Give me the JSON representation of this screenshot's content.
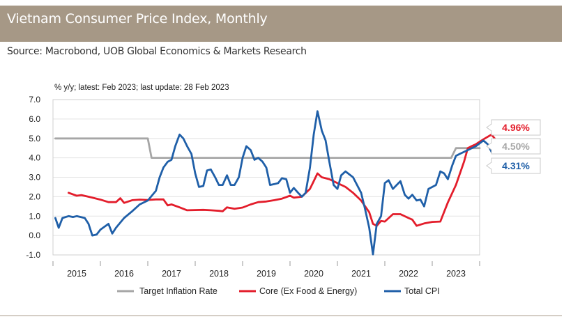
{
  "header": {
    "title": "Vietnam Consumer Price Index, Monthly",
    "source": "Source: Macrobond, UOB Global Economics & Markets Research"
  },
  "chart_data": {
    "type": "line",
    "subtitle": "% y/y; latest: Feb 2023; last update: 28 Feb 2023",
    "xlabel": "",
    "ylabel": "",
    "ylim": [
      -1.0,
      7.0
    ],
    "xlim": [
      2014.5,
      2023.5
    ],
    "y_ticks": [
      "7.0",
      "6.0",
      "5.0",
      "4.0",
      "3.0",
      "2.0",
      "1.0",
      "0.0",
      "-1.0"
    ],
    "x_ticks": [
      "2015",
      "2016",
      "2017",
      "2018",
      "2019",
      "2020",
      "2021",
      "2022",
      "2023"
    ],
    "grid": "horizontal",
    "legend_position": "bottom",
    "series": [
      {
        "name": "Target Inflation Rate",
        "color": "#a6a6a6",
        "points": [
          [
            2014.55,
            5.0
          ],
          [
            2016.5,
            5.0
          ],
          [
            2016.58,
            4.0
          ],
          [
            2022.9,
            4.0
          ],
          [
            2023.0,
            4.5
          ],
          [
            2023.5,
            4.5
          ]
        ]
      },
      {
        "name": "Core (Ex Food & Energy)",
        "color": "#e31d2b",
        "points": [
          [
            2014.83,
            2.2
          ],
          [
            2015.0,
            2.05
          ],
          [
            2015.1,
            2.08
          ],
          [
            2015.3,
            1.97
          ],
          [
            2015.5,
            1.85
          ],
          [
            2015.67,
            1.72
          ],
          [
            2015.83,
            1.72
          ],
          [
            2015.92,
            1.92
          ],
          [
            2016.0,
            1.68
          ],
          [
            2016.17,
            1.82
          ],
          [
            2016.33,
            1.85
          ],
          [
            2016.5,
            1.83
          ],
          [
            2016.67,
            1.86
          ],
          [
            2016.83,
            1.86
          ],
          [
            2016.92,
            1.55
          ],
          [
            2017.0,
            1.6
          ],
          [
            2017.17,
            1.45
          ],
          [
            2017.33,
            1.3
          ],
          [
            2017.67,
            1.32
          ],
          [
            2017.83,
            1.3
          ],
          [
            2018.0,
            1.27
          ],
          [
            2018.08,
            1.25
          ],
          [
            2018.17,
            1.45
          ],
          [
            2018.33,
            1.38
          ],
          [
            2018.5,
            1.44
          ],
          [
            2018.67,
            1.6
          ],
          [
            2018.83,
            1.72
          ],
          [
            2019.0,
            1.75
          ],
          [
            2019.17,
            1.82
          ],
          [
            2019.33,
            1.9
          ],
          [
            2019.5,
            2.05
          ],
          [
            2019.58,
            1.95
          ],
          [
            2019.75,
            2.0
          ],
          [
            2019.92,
            2.4
          ],
          [
            2020.0,
            2.8
          ],
          [
            2020.08,
            3.2
          ],
          [
            2020.17,
            3.0
          ],
          [
            2020.33,
            2.9
          ],
          [
            2020.5,
            2.7
          ],
          [
            2020.67,
            2.5
          ],
          [
            2020.83,
            2.2
          ],
          [
            2021.0,
            1.8
          ],
          [
            2021.17,
            1.2
          ],
          [
            2021.25,
            0.6
          ],
          [
            2021.33,
            0.5
          ],
          [
            2021.42,
            0.75
          ],
          [
            2021.5,
            0.72
          ],
          [
            2021.67,
            1.1
          ],
          [
            2021.83,
            1.1
          ],
          [
            2022.0,
            0.9
          ],
          [
            2022.08,
            0.82
          ],
          [
            2022.17,
            0.5
          ],
          [
            2022.33,
            0.62
          ],
          [
            2022.5,
            0.7
          ],
          [
            2022.67,
            0.72
          ],
          [
            2022.83,
            1.7
          ],
          [
            2023.0,
            2.6
          ],
          [
            2023.17,
            3.8
          ],
          [
            2023.25,
            4.5
          ],
          [
            2023.33,
            4.6
          ],
          [
            2023.42,
            4.7
          ],
          [
            2023.58,
            4.95
          ],
          [
            2023.75,
            5.2
          ],
          [
            2023.83,
            4.96
          ]
        ]
      },
      {
        "name": "Total CPI",
        "color": "#1f5fa8",
        "points": [
          [
            2014.55,
            0.9
          ],
          [
            2014.62,
            0.4
          ],
          [
            2014.7,
            0.9
          ],
          [
            2014.83,
            1.0
          ],
          [
            2014.92,
            0.95
          ],
          [
            2015.0,
            1.0
          ],
          [
            2015.17,
            0.9
          ],
          [
            2015.25,
            0.6
          ],
          [
            2015.33,
            0.0
          ],
          [
            2015.42,
            0.05
          ],
          [
            2015.5,
            0.3
          ],
          [
            2015.67,
            0.6
          ],
          [
            2015.75,
            0.1
          ],
          [
            2015.83,
            0.4
          ],
          [
            2016.0,
            0.9
          ],
          [
            2016.17,
            1.25
          ],
          [
            2016.33,
            1.6
          ],
          [
            2016.5,
            1.8
          ],
          [
            2016.67,
            2.3
          ],
          [
            2016.75,
            3.0
          ],
          [
            2016.83,
            3.5
          ],
          [
            2016.92,
            3.8
          ],
          [
            2017.0,
            3.9
          ],
          [
            2017.08,
            4.6
          ],
          [
            2017.17,
            5.2
          ],
          [
            2017.25,
            5.0
          ],
          [
            2017.33,
            4.6
          ],
          [
            2017.42,
            4.2
          ],
          [
            2017.5,
            3.2
          ],
          [
            2017.58,
            2.5
          ],
          [
            2017.67,
            2.55
          ],
          [
            2017.75,
            3.35
          ],
          [
            2017.83,
            3.4
          ],
          [
            2017.92,
            3.0
          ],
          [
            2018.0,
            2.6
          ],
          [
            2018.08,
            2.6
          ],
          [
            2018.17,
            3.1
          ],
          [
            2018.25,
            2.6
          ],
          [
            2018.33,
            2.6
          ],
          [
            2018.42,
            3.0
          ],
          [
            2018.5,
            4.0
          ],
          [
            2018.58,
            4.6
          ],
          [
            2018.67,
            4.4
          ],
          [
            2018.75,
            3.9
          ],
          [
            2018.83,
            4.0
          ],
          [
            2018.92,
            3.8
          ],
          [
            2019.0,
            3.5
          ],
          [
            2019.08,
            2.6
          ],
          [
            2019.17,
            2.65
          ],
          [
            2019.25,
            2.7
          ],
          [
            2019.33,
            2.95
          ],
          [
            2019.42,
            2.9
          ],
          [
            2019.5,
            2.2
          ],
          [
            2019.58,
            2.45
          ],
          [
            2019.67,
            2.2
          ],
          [
            2019.75,
            2.0
          ],
          [
            2019.83,
            2.2
          ],
          [
            2019.92,
            3.5
          ],
          [
            2020.0,
            5.2
          ],
          [
            2020.08,
            6.4
          ],
          [
            2020.17,
            5.4
          ],
          [
            2020.25,
            4.9
          ],
          [
            2020.33,
            3.8
          ],
          [
            2020.42,
            2.6
          ],
          [
            2020.5,
            2.4
          ],
          [
            2020.58,
            3.1
          ],
          [
            2020.67,
            3.3
          ],
          [
            2020.83,
            3.0
          ],
          [
            2021.0,
            2.2
          ],
          [
            2021.08,
            1.4
          ],
          [
            2021.17,
            0.4
          ],
          [
            2021.25,
            -0.97
          ],
          [
            2021.33,
            0.6
          ],
          [
            2021.42,
            1.0
          ],
          [
            2021.5,
            2.7
          ],
          [
            2021.58,
            2.85
          ],
          [
            2021.67,
            2.4
          ],
          [
            2021.75,
            2.6
          ],
          [
            2021.83,
            2.8
          ],
          [
            2021.92,
            2.1
          ],
          [
            2022.0,
            1.9
          ],
          [
            2022.08,
            2.1
          ],
          [
            2022.17,
            1.8
          ],
          [
            2022.25,
            1.85
          ],
          [
            2022.33,
            1.5
          ],
          [
            2022.42,
            2.4
          ],
          [
            2022.58,
            2.6
          ],
          [
            2022.67,
            3.3
          ],
          [
            2022.75,
            3.2
          ],
          [
            2022.83,
            2.9
          ],
          [
            2022.92,
            3.6
          ],
          [
            2023.0,
            4.1
          ],
          [
            2023.08,
            4.2
          ],
          [
            2023.25,
            4.4
          ],
          [
            2023.42,
            4.6
          ],
          [
            2023.58,
            4.89
          ],
          [
            2023.67,
            4.7
          ],
          [
            2023.75,
            4.31
          ]
        ]
      }
    ],
    "callouts": [
      {
        "label": "4.96%",
        "value": 4.96,
        "color": "#e31d2b"
      },
      {
        "label": "4.50%",
        "value": 4.5,
        "color": "#a6a6a6"
      },
      {
        "label": "4.31%",
        "value": 4.31,
        "color": "#1f5fa8"
      }
    ]
  }
}
